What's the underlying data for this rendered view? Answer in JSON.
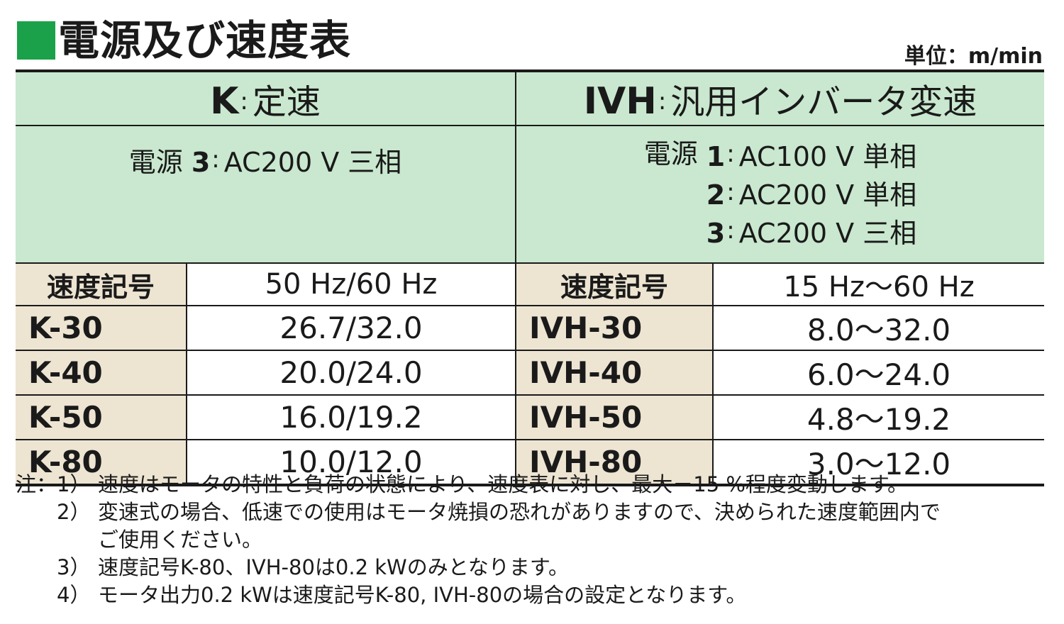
{
  "header": {
    "title": "電源及び速度表",
    "unit": "単位：m/min"
  },
  "table": {
    "left": {
      "code": "K",
      "name": "定速",
      "power_label": "電源",
      "power": [
        {
          "num": "3",
          "text": "AC200 V 三相"
        }
      ],
      "symbol_header": "速度記号",
      "freq_header": "50 Hz/60 Hz",
      "rows": [
        {
          "model": "K-30",
          "value": "26.7/32.0"
        },
        {
          "model": "K-40",
          "value": "20.0/24.0"
        },
        {
          "model": "K-50",
          "value": "16.0/19.2"
        },
        {
          "model": "K-80",
          "value": "10.0/12.0"
        }
      ]
    },
    "right": {
      "code": "IVH",
      "name": "汎用インバータ変速",
      "power_label": "電源",
      "power": [
        {
          "num": "1",
          "text": "AC100 V 単相"
        },
        {
          "num": "2",
          "text": "AC200 V 単相"
        },
        {
          "num": "3",
          "text": "AC200 V 三相"
        }
      ],
      "symbol_header": "速度記号",
      "freq_header": "15 Hz～60 Hz",
      "rows": [
        {
          "model": "IVH-30",
          "value": "8.0～32.0"
        },
        {
          "model": "IVH-40",
          "value": "6.0～24.0"
        },
        {
          "model": "IVH-50",
          "value": "4.8～19.2"
        },
        {
          "model": "IVH-80",
          "value": "3.0～12.0"
        }
      ]
    },
    "colors": {
      "header_green": "#c9e8cf",
      "symbol_beige": "#ede4d2",
      "title_square": "#1aa14a"
    }
  },
  "notes": {
    "prefix": "注：",
    "items": [
      {
        "num": "1）",
        "text": "速度はモータの特性と負荷の状態により、速度表に対し、最大－15 %程度変動します。"
      },
      {
        "num": "2）",
        "text": "変速式の場合、低速での使用はモータ焼損の恐れがありますので、決められた速度範囲内で"
      },
      {
        "num": "",
        "text": "ご使用ください。"
      },
      {
        "num": "3）",
        "text": "速度記号K-80、IVH-80は0.2 kWのみとなります。"
      },
      {
        "num": "4）",
        "text": "モータ出力0.2 kWは速度記号K-80, IVH-80の場合の設定となります。"
      }
    ]
  }
}
